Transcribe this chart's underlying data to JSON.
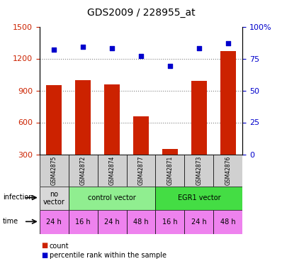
{
  "title": "GDS2009 / 228955_at",
  "samples": [
    "GSM42875",
    "GSM42872",
    "GSM42874",
    "GSM42877",
    "GSM42871",
    "GSM42873",
    "GSM42876"
  ],
  "counts": [
    950,
    1000,
    960,
    660,
    350,
    990,
    1270
  ],
  "percentiles": [
    82,
    84,
    83,
    77,
    69,
    83,
    87
  ],
  "ylim_left": [
    300,
    1500
  ],
  "ylim_right": [
    0,
    100
  ],
  "yticks_left": [
    300,
    600,
    900,
    1200,
    1500
  ],
  "yticks_right": [
    0,
    25,
    50,
    75,
    100
  ],
  "ytick_labels_right": [
    "0",
    "25",
    "50",
    "75",
    "100%"
  ],
  "infection_data": [
    {
      "label": "no\nvector",
      "start": 0,
      "end": 1,
      "color": "#d8d8d8"
    },
    {
      "label": "control vector",
      "start": 1,
      "end": 4,
      "color": "#90ee90"
    },
    {
      "label": "EGR1 vector",
      "start": 4,
      "end": 7,
      "color": "#44dd44"
    }
  ],
  "time_labels": [
    "24 h",
    "16 h",
    "24 h",
    "48 h",
    "16 h",
    "24 h",
    "48 h"
  ],
  "time_color": "#ee82ee",
  "bar_color": "#cc2200",
  "dot_color": "#0000cc",
  "grid_color": "#808080",
  "bg_color": "#ffffff",
  "sample_bg": "#d0d0d0"
}
